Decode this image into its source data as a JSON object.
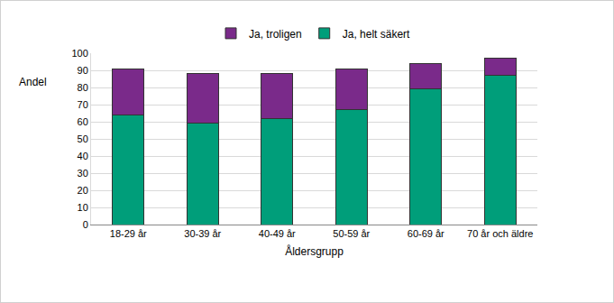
{
  "chart_data": {
    "type": "bar",
    "stacked": true,
    "x_label": "Åldersgrupp",
    "y_label": "Andel",
    "categories": [
      "18-29 år",
      "30-39 år",
      "40-49 år",
      "50-59 år",
      "60-69 år",
      "70 år och äldre"
    ],
    "series": [
      {
        "name": "Ja, helt säkert",
        "color": "#009e7a",
        "values": [
          64,
          59,
          62,
          67,
          79,
          87
        ]
      },
      {
        "name": "Ja, troligen",
        "color": "#7a2a8a",
        "values": [
          27,
          29,
          26,
          24,
          15,
          10
        ]
      }
    ],
    "ylim": [
      0,
      100
    ],
    "yticks": [
      0,
      10,
      20,
      30,
      40,
      50,
      60,
      70,
      80,
      90,
      100
    ],
    "grid": true,
    "legend": "top"
  }
}
